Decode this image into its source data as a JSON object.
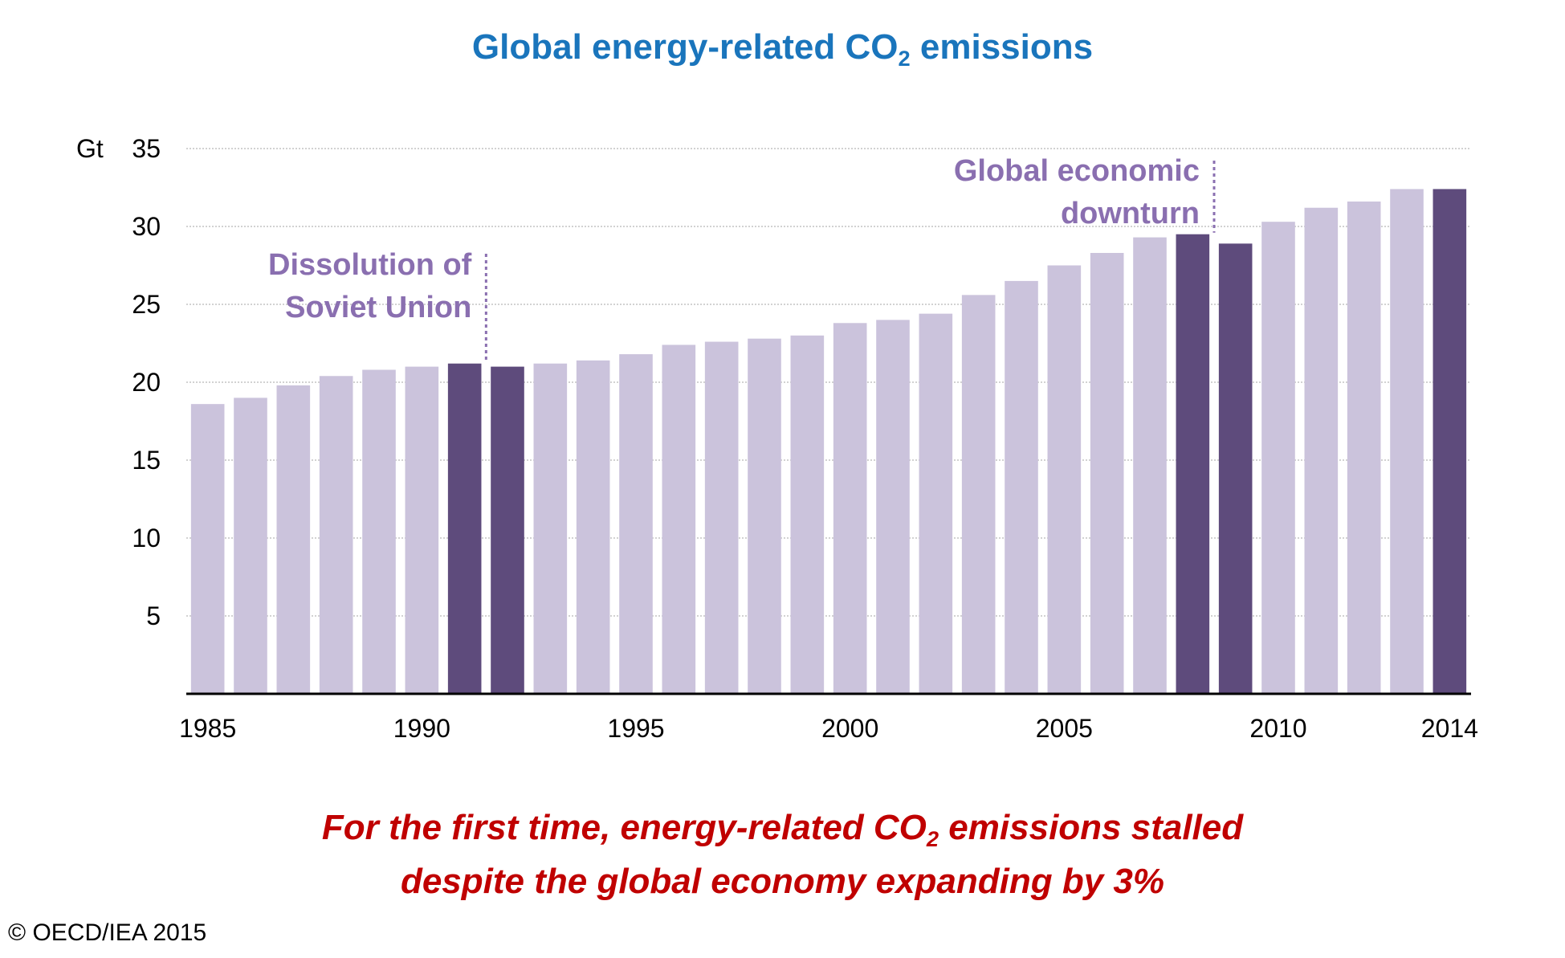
{
  "title": {
    "prefix": "Global energy-related CO",
    "sub": "2",
    "suffix": " emissions"
  },
  "chart_data": {
    "type": "bar",
    "title": "Global energy-related CO2 emissions",
    "ylabel": "Gt",
    "xlabel": "",
    "ylim": [
      0,
      35
    ],
    "yticks": [
      5,
      10,
      15,
      20,
      25,
      30,
      35
    ],
    "grid": true,
    "categories": [
      "1985",
      "1986",
      "1987",
      "1988",
      "1989",
      "1990",
      "1991",
      "1992",
      "1993",
      "1994",
      "1995",
      "1996",
      "1997",
      "1998",
      "1999",
      "2000",
      "2001",
      "2002",
      "2003",
      "2004",
      "2005",
      "2006",
      "2007",
      "2008",
      "2009",
      "2010",
      "2011",
      "2012",
      "2013",
      "2014"
    ],
    "values": [
      18.6,
      19.0,
      19.8,
      20.4,
      20.8,
      21.0,
      21.2,
      21.0,
      21.2,
      21.4,
      21.8,
      22.4,
      22.6,
      22.8,
      23.0,
      23.8,
      24.0,
      24.4,
      25.6,
      26.5,
      27.5,
      28.3,
      29.3,
      29.5,
      28.9,
      30.3,
      31.2,
      31.6,
      32.4,
      32.4
    ],
    "highlight": [
      "1991",
      "1992",
      "2008",
      "2009",
      "2014"
    ],
    "xtick_labels": [
      "1985",
      "1990",
      "1995",
      "2000",
      "2005",
      "2010",
      "2014"
    ],
    "annotations": [
      {
        "lines": [
          "Dissolution of",
          "Soviet Union"
        ],
        "between": [
          "1991",
          "1992"
        ]
      },
      {
        "lines": [
          "Global economic",
          "downturn"
        ],
        "between": [
          "2008",
          "2009"
        ]
      }
    ]
  },
  "colors": {
    "bar": "#cbc3dc",
    "highlight": "#5e4b7c",
    "annotation": "#8a6fb0",
    "title": "#1a75bc",
    "takeaway": "#c00000",
    "axis": "#000000",
    "grid": "#b8b8b8"
  },
  "takeaway": {
    "line1_prefix": "For the first time, energy-related CO",
    "line1_sub": "2",
    "line1_suffix": " emissions stalled",
    "line2": "despite the global economy expanding by 3%"
  },
  "copyright": "© OECD/IEA 2015"
}
